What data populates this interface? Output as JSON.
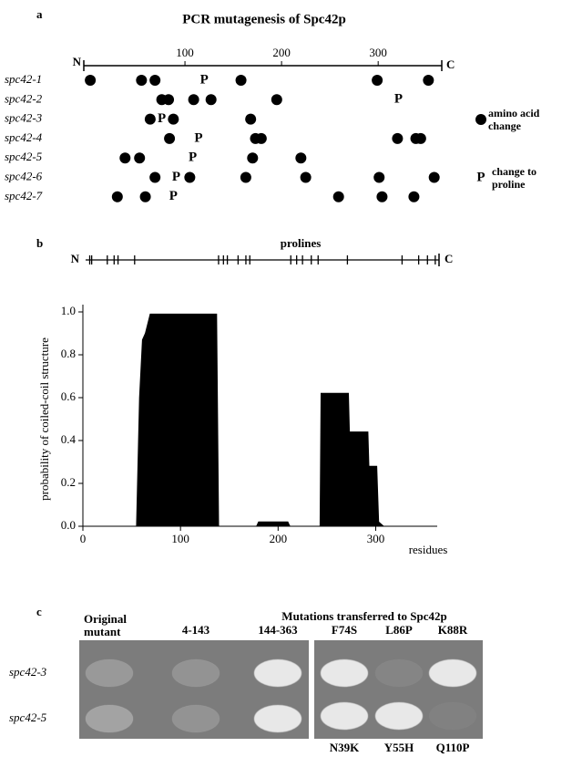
{
  "panel_labels": [
    "a",
    "b",
    "c"
  ],
  "chart_data": [
    {
      "type": "mutation_map",
      "title": "PCR mutagenesis of Spc42p",
      "xlim": [
        0,
        363
      ],
      "end_labels": [
        "N",
        "C"
      ],
      "xticks": [
        100,
        200,
        300
      ],
      "rows": [
        {
          "name": "spc42-1",
          "changes": [
            2,
            55,
            69,
            158,
            299,
            352
          ],
          "prolines": [
            120
          ]
        },
        {
          "name": "spc42-2",
          "changes": [
            76,
            83,
            109,
            127,
            195
          ],
          "prolines": [
            321
          ]
        },
        {
          "name": "spc42-3",
          "changes": [
            64,
            88,
            168
          ],
          "prolines": [
            76
          ]
        },
        {
          "name": "spc42-4",
          "changes": [
            84,
            173,
            179,
            320,
            339,
            344
          ],
          "prolines": [
            114
          ]
        },
        {
          "name": "spc42-5",
          "changes": [
            38,
            53,
            170,
            220
          ],
          "prolines": [
            108
          ]
        },
        {
          "name": "spc42-6",
          "changes": [
            69,
            105,
            163,
            225,
            301,
            358
          ],
          "prolines": [
            91
          ]
        },
        {
          "name": "spc42-7",
          "changes": [
            30,
            59,
            259,
            304,
            337
          ],
          "prolines": [
            88
          ]
        }
      ],
      "legend": {
        "change_label": "amino acid change",
        "proline_marker": "P",
        "proline_label": "change to proline"
      }
    },
    {
      "type": "area",
      "track_label": "prolines",
      "track_ends": [
        "N",
        "C"
      ],
      "proline_positions": [
        7,
        9,
        25,
        32,
        36,
        53,
        139,
        144,
        148,
        159,
        167,
        171,
        213,
        219,
        225,
        234,
        241,
        271,
        327,
        344,
        353,
        361
      ],
      "x": [
        0,
        55,
        58,
        61,
        64,
        69,
        137,
        139,
        178,
        180,
        210,
        212,
        243,
        244,
        272,
        273,
        292,
        293,
        301,
        303,
        308,
        363
      ],
      "values": [
        0,
        0,
        0.6,
        0.87,
        0.9,
        0.99,
        0.99,
        0,
        0,
        0.02,
        0.02,
        0,
        0,
        0.62,
        0.62,
        0.44,
        0.44,
        0.28,
        0.28,
        0.02,
        0,
        0
      ],
      "color": "#000000",
      "xlim": [
        0,
        363
      ],
      "ylim": [
        0,
        1
      ],
      "xticks": [
        0,
        100,
        200,
        300
      ],
      "yticks": [
        {
          "value": 0,
          "label": "0.0"
        },
        0.2,
        0.4,
        0.6,
        0.8,
        {
          "value": 1,
          "label": "1.0"
        }
      ],
      "ylabel": "probability of coiled-coil structure",
      "xlabel": "residues"
    }
  ],
  "panel_c": {
    "title": "Mutations transferred to Spc42p",
    "top_labels": [
      "Original mutant",
      "4-143",
      "144-363",
      "F74S",
      "L86P",
      "K88R"
    ],
    "bottom_labels": [
      "N39K",
      "Y55H",
      "Q110P"
    ],
    "rows": [
      "spc42-3",
      "spc42-5"
    ]
  }
}
